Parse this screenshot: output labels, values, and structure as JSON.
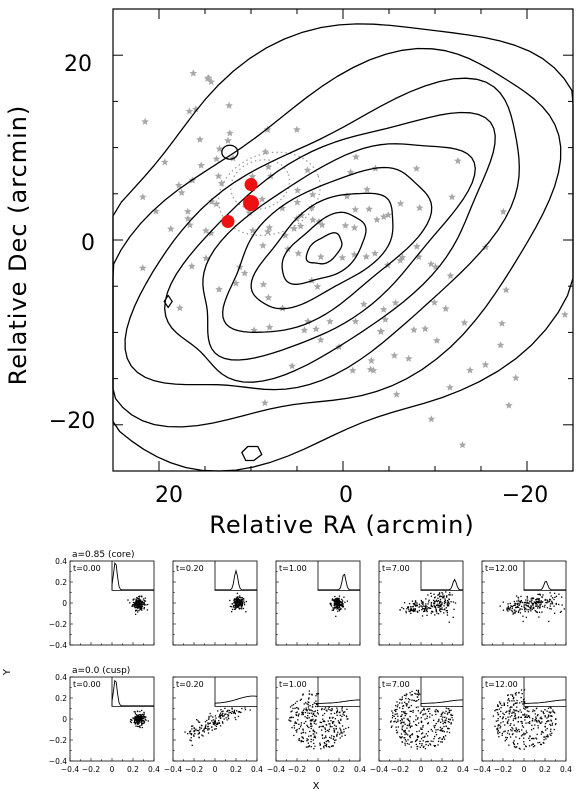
{
  "colors": {
    "contour": "#000000",
    "star": "#a8a8a8",
    "dot": "#ee1111",
    "particle": "#000000"
  },
  "main": {
    "xlabel": "Relative RA (arcmin)",
    "ylabel": "Relative Dec (arcmin)",
    "x_ticks": [
      "20",
      "0",
      "−20"
    ],
    "y_ticks": [
      "20",
      "0",
      "−20"
    ]
  },
  "sims": {
    "ylabel": "Y",
    "xlabel": "X",
    "x_ticks": [
      "−0.4",
      "−0.2",
      "0",
      "0.2",
      "0.4"
    ],
    "y_ticks": [
      "0.4",
      "0.2",
      "0",
      "−0.2",
      "−0.4"
    ],
    "rows": [
      {
        "label": "a=0.85  (core)",
        "times": [
          "t=0.00",
          "t=0.20",
          "t=1.00",
          "t=7.00",
          "t=12.00"
        ]
      },
      {
        "label": "a=0.0   (cusp)",
        "times": [
          "t=0.00",
          "t=0.20",
          "t=1.00",
          "t=7.00",
          "t=12.00"
        ]
      }
    ]
  },
  "chart_data": [
    {
      "type": "scatter",
      "title": "",
      "xlabel": "Relative RA (arcmin)",
      "ylabel": "Relative Dec (arcmin)",
      "xlim": [
        25,
        -25
      ],
      "ylim": [
        -25,
        25
      ],
      "x_reversed": true,
      "series": [
        {
          "marker": "filled-circle",
          "color": "#ee1111",
          "points": [
            [
              10,
              6
            ],
            [
              10,
              4
            ],
            [
              12.5,
              2
            ]
          ]
        }
      ],
      "contours": "smoothed star-count density contours, peak near (2, -1)",
      "grid": false
    },
    {
      "type": "scatter",
      "title": "",
      "xlabel": "X",
      "ylabel": "Y",
      "xlim": [
        -0.4,
        0.4
      ],
      "ylim": [
        -0.4,
        0.4
      ],
      "panels": [
        {
          "label": "a=0.85  (core)",
          "time": "t=0.00"
        },
        {
          "label": "a=0.85  (core)",
          "time": "t=0.20"
        },
        {
          "label": "a=0.85  (core)",
          "time": "t=1.00"
        },
        {
          "label": "a=0.85  (core)",
          "time": "t=7.00"
        },
        {
          "label": "a=0.85  (core)",
          "time": "t=12.00"
        },
        {
          "label": "a=0.0   (cusp)",
          "time": "t=0.00"
        },
        {
          "label": "a=0.0   (cusp)",
          "time": "t=0.20"
        },
        {
          "label": "a=0.0   (cusp)",
          "time": "t=1.00"
        },
        {
          "label": "a=0.0   (cusp)",
          "time": "t=7.00"
        },
        {
          "label": "a=0.0   (cusp)",
          "time": "t=12.00"
        }
      ]
    }
  ]
}
